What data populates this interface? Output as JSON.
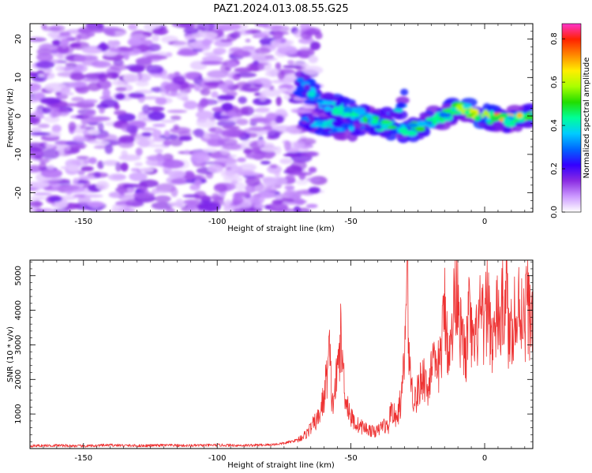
{
  "chart_data": [
    {
      "type": "heatmap",
      "title": "PAZ1.2024.013.08.55.G25",
      "xlabel": "Height of straight line (km)",
      "ylabel": "Frequency (Hz)",
      "xlim": [
        -170,
        18
      ],
      "ylim": [
        -25,
        24
      ],
      "xticks": [
        -150,
        -100,
        -50,
        0
      ],
      "yticks": [
        20,
        10,
        0,
        -10,
        -20
      ],
      "colorbar": {
        "label": "Normalized spectral amplitude",
        "range": [
          0,
          0.87
        ],
        "ticks": [
          0.0,
          0.2,
          0.4,
          0.6,
          0.8
        ],
        "colormap": "gist_ncar",
        "colors": [
          "#ffffff",
          "#cc99ff",
          "#8a2be2",
          "#3300ff",
          "#0066ff",
          "#00ccff",
          "#00ff99",
          "#22dd00",
          "#aaff00",
          "#ffee00",
          "#ff8800",
          "#ff2200",
          "#ff33cc"
        ]
      },
      "features": {
        "noise_region_x": [
          -170,
          -68
        ],
        "signal_track": {
          "x": [
            -70,
            -65,
            -60,
            -55,
            -50,
            -45,
            -40,
            -35,
            -30,
            -25,
            -20,
            -15,
            -10,
            -5,
            0,
            5,
            10,
            15,
            18
          ],
          "y": [
            9,
            6,
            3,
            2,
            1,
            0,
            -2,
            -3,
            -4,
            -3,
            -1,
            0,
            2,
            1,
            0,
            -1,
            -1,
            0,
            0
          ],
          "amplitude": [
            0.35,
            0.4,
            0.42,
            0.45,
            0.45,
            0.5,
            0.5,
            0.5,
            0.5,
            0.55,
            0.55,
            0.55,
            0.6,
            0.65,
            0.7,
            0.75,
            0.72,
            0.68,
            0.65
          ]
        },
        "secondary_track": {
          "x": [
            -68,
            -62,
            -55,
            -48,
            -42,
            -36,
            -32,
            -30
          ],
          "y": [
            -1,
            -2,
            -3,
            -3,
            -2,
            -1,
            1,
            4
          ],
          "amplitude": [
            0.3,
            0.4,
            0.4,
            0.45,
            0.45,
            0.4,
            0.4,
            0.35
          ]
        }
      }
    },
    {
      "type": "line",
      "xlabel": "Height of straight line (km)",
      "ylabel": "SNR (10 * v/v)",
      "xlim": [
        -170,
        18
      ],
      "ylim": [
        0,
        5450
      ],
      "xticks": [
        -150,
        -100,
        -50,
        0
      ],
      "yticks": [
        1000,
        2000,
        3000,
        4000,
        5000
      ],
      "line_color": "#ee3333",
      "series": [
        {
          "x": [
            -170,
            -160,
            -150,
            -140,
            -130,
            -120,
            -110,
            -100,
            -90,
            -80,
            -75,
            -70,
            -67,
            -65,
            -62,
            -60,
            -58,
            -57,
            -55,
            -54,
            -52,
            -50,
            -48,
            -45,
            -42,
            -40,
            -38,
            -36,
            -35,
            -33,
            -31,
            -30,
            -29,
            -28,
            -27,
            -26,
            -25,
            -23,
            -21,
            -20,
            -18,
            -16,
            -15,
            -13,
            -11,
            -10,
            -9,
            -7,
            -6,
            -4,
            -2,
            0,
            1,
            3,
            5,
            6,
            8,
            9,
            11,
            12,
            13,
            15,
            16,
            17,
            18
          ],
          "y": [
            80,
            90,
            70,
            100,
            80,
            95,
            85,
            100,
            90,
            110,
            150,
            250,
            400,
            600,
            900,
            1500,
            2800,
            1200,
            2200,
            3250,
            1500,
            900,
            700,
            600,
            500,
            500,
            700,
            600,
            1200,
            800,
            1500,
            2500,
            5400,
            2200,
            1700,
            1400,
            1600,
            2200,
            1600,
            2700,
            2000,
            3000,
            4100,
            2600,
            4600,
            5100,
            3300,
            2600,
            3900,
            2700,
            3800,
            3400,
            4400,
            3000,
            3900,
            3600,
            4900,
            3100,
            4000,
            3400,
            4300,
            3700,
            4400,
            3600,
            4200
          ]
        }
      ]
    }
  ]
}
